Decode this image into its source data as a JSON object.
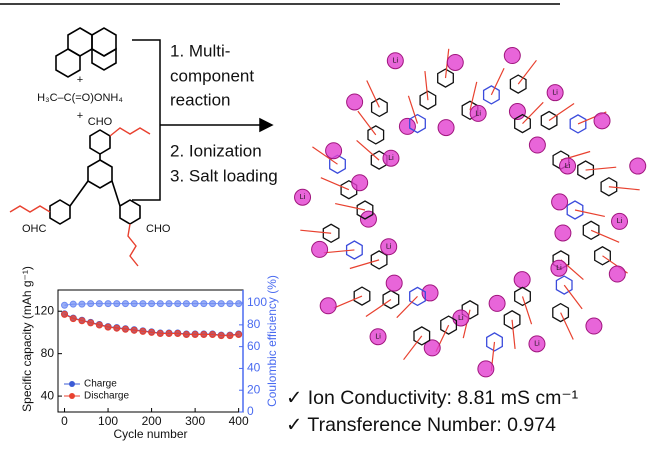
{
  "scheme": {
    "plus": "+",
    "amine": "H₃C–C(=O)ONH₄",
    "aldehyde": "CHO",
    "aldehyde_left": "OHC",
    "steps": [
      "1. Multi-",
      "component",
      "reaction",
      "2. Ionization",
      "3. Salt loading"
    ],
    "ion": "Li"
  },
  "chart_data": {
    "type": "line",
    "xlabel": "Cycle number",
    "ylabel": "Specific capacity (mAh g⁻¹)",
    "y2label": "Coulombic efficiency (%)",
    "x": [
      0,
      20,
      40,
      60,
      80,
      100,
      120,
      140,
      160,
      180,
      200,
      220,
      240,
      260,
      280,
      300,
      320,
      340,
      360,
      380,
      400
    ],
    "series": [
      {
        "name": "Charge",
        "color": "#3b5bd6",
        "values": [
          117.5,
          113.5,
          111.5,
          109.5,
          107.5,
          105.5,
          104.5,
          103.5,
          102.5,
          101.5,
          100.5,
          99.5,
          99.5,
          99.5,
          98.5,
          98.5,
          98.5,
          98.5,
          97.5,
          97.5,
          98.5
        ]
      },
      {
        "name": "Discharge",
        "color": "#e8412f",
        "values": [
          117,
          113,
          111,
          109,
          107,
          105,
          104,
          103,
          102,
          101,
          100,
          99,
          99,
          99,
          98,
          98,
          98,
          98,
          97,
          97,
          98
        ]
      },
      {
        "color": "#6f8cf2",
        "axis": "y2",
        "values": [
          98,
          99,
          99,
          99.5,
          99.5,
          99.5,
          99.5,
          99.5,
          99.5,
          99.5,
          99.5,
          99.5,
          99.5,
          99.5,
          99.5,
          99.5,
          99.5,
          99.5,
          99.5,
          99.5,
          99.5
        ]
      }
    ],
    "xlim": [
      -15,
      410
    ],
    "xticks": [
      0,
      100,
      200,
      300,
      400
    ],
    "ylim": [
      25,
      140
    ],
    "yticks": [
      40,
      80,
      120
    ],
    "y2lim": [
      0,
      112
    ],
    "y2ticks": [
      0,
      20,
      40,
      60,
      80,
      100
    ],
    "legend": "lower left"
  },
  "highlights": [
    "✓ Ion Conductivity: 8.81 mS cm⁻¹",
    "✓ Transference Number: 0.974"
  ]
}
